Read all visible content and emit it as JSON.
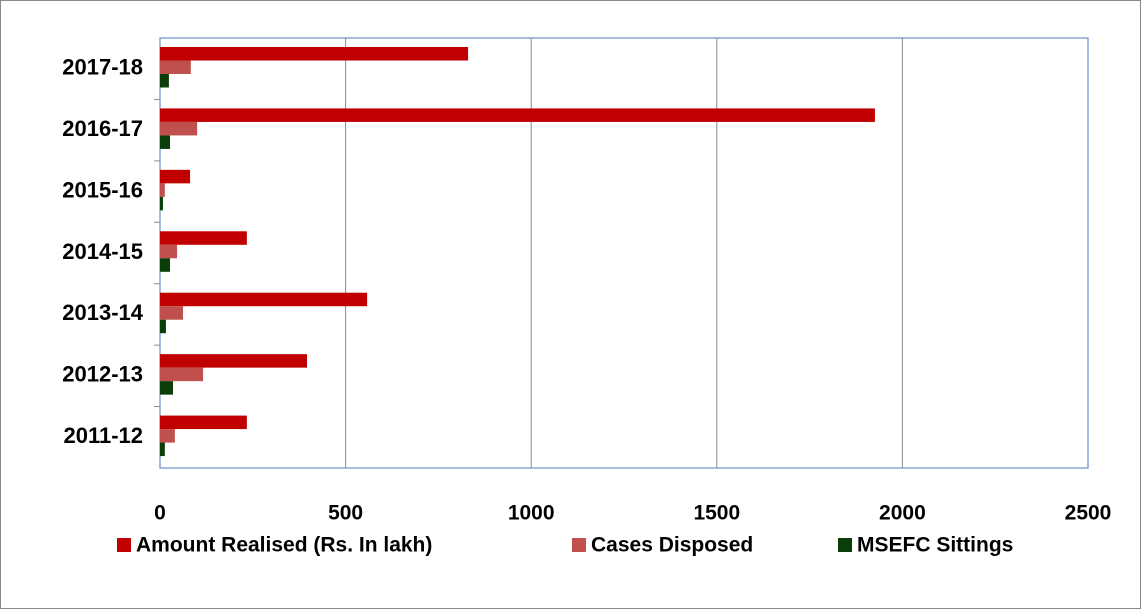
{
  "chart_data": {
    "type": "hbar",
    "categories": [
      "2017-18",
      "2016-17",
      "2015-16",
      "2014-15",
      "2013-14",
      "2012-13",
      "2011-12"
    ],
    "series": [
      {
        "name": "Amount Realised (Rs. In lakh)",
        "color": "#c00000",
        "values": [
          830,
          1926,
          81,
          234,
          558,
          396,
          234
        ]
      },
      {
        "name": "Cases Disposed",
        "color": "#c0504d",
        "values": [
          83,
          100,
          13,
          46,
          62,
          116,
          40
        ]
      },
      {
        "name": "MSEFC Sittings",
        "color": "#0b3d0b",
        "values": [
          24,
          27,
          8,
          27,
          16,
          35,
          13
        ]
      }
    ],
    "xlim": [
      0,
      2500
    ],
    "xticks": [
      0,
      500,
      1000,
      1500,
      2000,
      2500
    ],
    "grid": true,
    "legend": "bottom"
  }
}
